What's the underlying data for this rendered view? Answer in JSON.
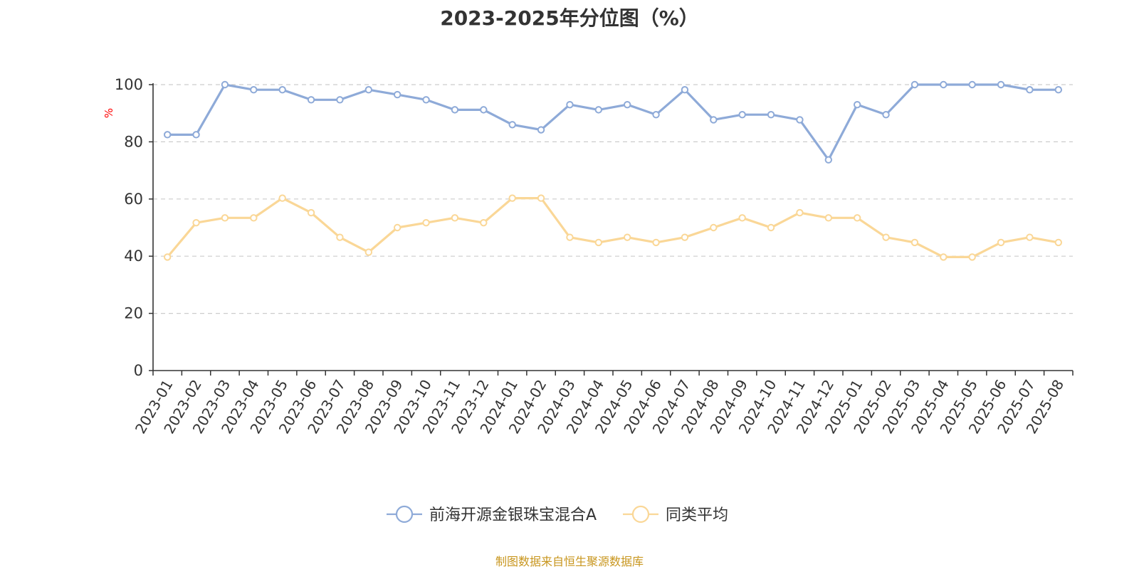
{
  "chart_data": {
    "type": "line",
    "title": "2023-2025年分位图（%）",
    "ylabel": "%",
    "xlabel": "",
    "ylim": [
      0,
      100
    ],
    "yticks": [
      0,
      20,
      40,
      60,
      80,
      100
    ],
    "grid": "horizontal dashed",
    "legend_position": "bottom-center",
    "categories": [
      "2023-01",
      "2023-02",
      "2023-03",
      "2023-04",
      "2023-05",
      "2023-06",
      "2023-07",
      "2023-08",
      "2023-09",
      "2023-10",
      "2023-11",
      "2023-12",
      "2024-01",
      "2024-02",
      "2024-03",
      "2024-04",
      "2024-05",
      "2024-06",
      "2024-07",
      "2024-08",
      "2024-09",
      "2024-10",
      "2024-11",
      "2024-12",
      "2025-01",
      "2025-02",
      "2025-03",
      "2025-04",
      "2025-05",
      "2025-06",
      "2025-07",
      "2025-08"
    ],
    "series": [
      {
        "name": "前海开源金银珠宝混合A",
        "color": "#8eaad8",
        "values": [
          82.5,
          82.5,
          100,
          98.2,
          98.2,
          94.7,
          94.7,
          98.2,
          96.5,
          94.7,
          91.2,
          91.2,
          86,
          84.2,
          93,
          91.2,
          93,
          89.5,
          98.2,
          87.7,
          89.5,
          89.5,
          87.7,
          73.7,
          93,
          89.5,
          100,
          100,
          100,
          100,
          98.2,
          98.2
        ]
      },
      {
        "name": "同类平均",
        "color": "#fad797",
        "values": [
          39.7,
          51.7,
          53.4,
          53.4,
          60.3,
          55.2,
          46.6,
          41.4,
          50,
          51.7,
          53.4,
          51.7,
          60.3,
          60.3,
          46.6,
          44.8,
          46.6,
          44.8,
          46.6,
          50,
          53.4,
          50,
          55.2,
          53.4,
          53.4,
          46.6,
          44.8,
          39.7,
          39.7,
          44.8,
          46.6,
          44.8
        ]
      }
    ]
  },
  "source_text": "制图数据来自恒生聚源数据库",
  "colors": {
    "axis": "#333333",
    "grid": "#cccccc",
    "ylabel": "#ff0000",
    "source": "#c8961e"
  }
}
